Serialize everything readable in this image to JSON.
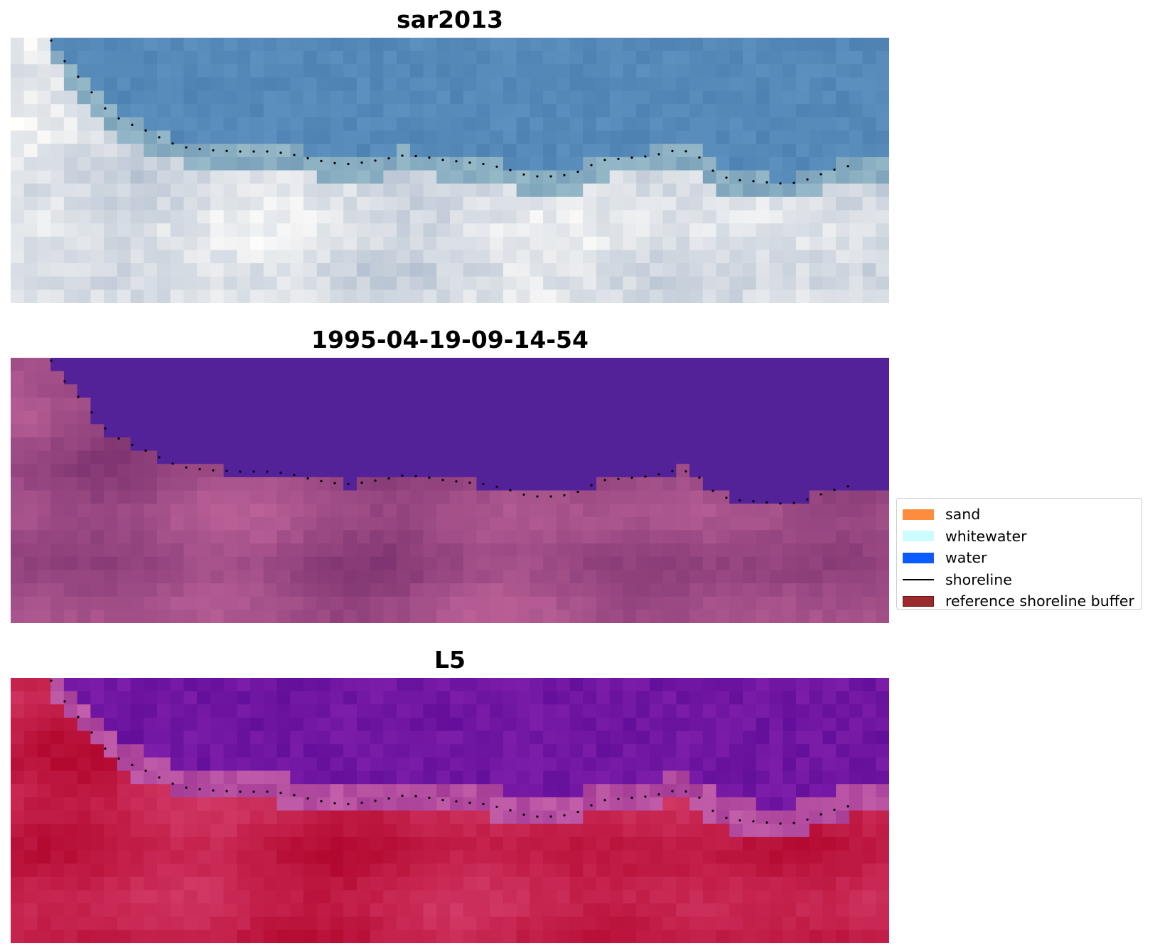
{
  "panels": [
    {
      "title": "sar2013",
      "palette": "rgb-satellite"
    },
    {
      "title": "1995-04-19-09-14-54",
      "palette": "classified-water-purple"
    },
    {
      "title": "L5",
      "palette": "ndwi-red-purple"
    }
  ],
  "legend": {
    "items": [
      {
        "label": "sand",
        "color": "#fd8d3c",
        "kind": "patch"
      },
      {
        "label": "whitewater",
        "color": "#ccfcff",
        "kind": "patch"
      },
      {
        "label": "water",
        "color": "#0a5cff",
        "kind": "patch"
      },
      {
        "label": "shoreline",
        "color": "#000000",
        "kind": "line"
      },
      {
        "label": "reference shoreline buffer",
        "color": "#9b2a2d",
        "kind": "patch"
      }
    ]
  }
}
